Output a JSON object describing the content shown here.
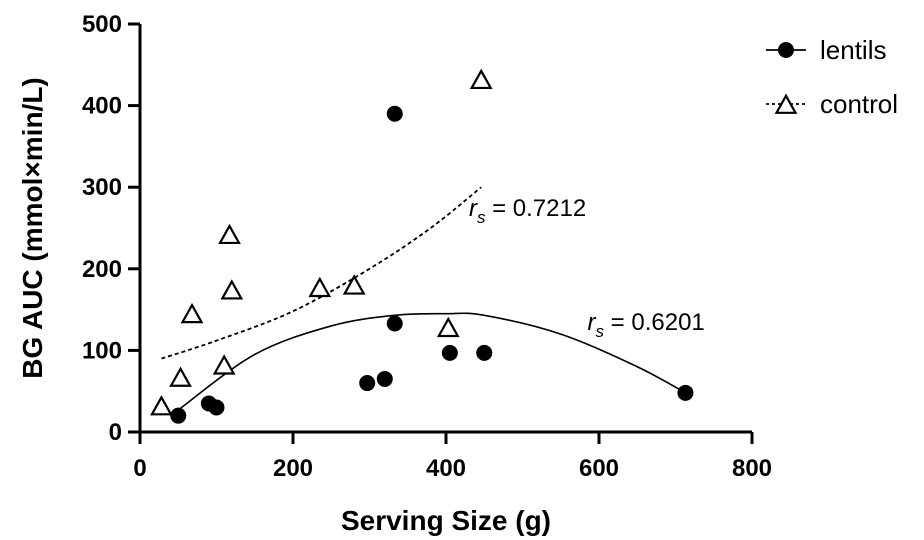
{
  "chart_data": {
    "type": "scatter",
    "xlabel": "Serving Size (g)",
    "ylabel": "BG AUC (mmol×min/L)",
    "xlim": [
      0,
      800
    ],
    "ylim": [
      0,
      500
    ],
    "xticks": [
      0,
      200,
      400,
      600,
      800
    ],
    "yticks": [
      0,
      100,
      200,
      300,
      400,
      500
    ],
    "xtick_labels": [
      "0",
      "200",
      "400",
      "600",
      "800"
    ],
    "ytick_labels": [
      "0",
      "100",
      "200",
      "300",
      "400",
      "500"
    ],
    "legend_position": "top-right",
    "grid": false,
    "series": [
      {
        "name": "lentils",
        "marker": "filled-circle",
        "color": "#000000",
        "points": [
          {
            "x": 50,
            "y": 20
          },
          {
            "x": 90,
            "y": 35
          },
          {
            "x": 100,
            "y": 30
          },
          {
            "x": 297,
            "y": 60
          },
          {
            "x": 320,
            "y": 65
          },
          {
            "x": 333,
            "y": 390
          },
          {
            "x": 333,
            "y": 133
          },
          {
            "x": 405,
            "y": 97
          },
          {
            "x": 450,
            "y": 97
          },
          {
            "x": 713,
            "y": 48
          }
        ],
        "fit_line": {
          "style": "solid",
          "points": [
            [
              50,
              27
            ],
            [
              150,
              95
            ],
            [
              250,
              130
            ],
            [
              333,
              143
            ],
            [
              400,
              145
            ],
            [
              450,
              143
            ],
            [
              550,
              120
            ],
            [
              650,
              80
            ],
            [
              713,
              48
            ]
          ]
        }
      },
      {
        "name": "control",
        "marker": "open-triangle",
        "color": "#000000",
        "points": [
          {
            "x": 28,
            "y": 30
          },
          {
            "x": 53,
            "y": 65
          },
          {
            "x": 68,
            "y": 143
          },
          {
            "x": 110,
            "y": 80
          },
          {
            "x": 117,
            "y": 240
          },
          {
            "x": 120,
            "y": 172
          },
          {
            "x": 235,
            "y": 175
          },
          {
            "x": 280,
            "y": 178
          },
          {
            "x": 403,
            "y": 126
          },
          {
            "x": 446,
            "y": 430
          }
        ],
        "fit_line": {
          "style": "dashed",
          "points": [
            [
              28,
              90
            ],
            [
              100,
              112
            ],
            [
              200,
              148
            ],
            [
              300,
              200
            ],
            [
              380,
              250
            ],
            [
              446,
              300
            ]
          ]
        }
      }
    ],
    "annotations": [
      {
        "r_symbol": "r",
        "subscript": "s",
        "text": " = 0.7212",
        "x": 430,
        "y": 265
      },
      {
        "r_symbol": "r",
        "subscript": "s",
        "text": " = 0.6201",
        "x": 585,
        "y": 125
      }
    ]
  }
}
